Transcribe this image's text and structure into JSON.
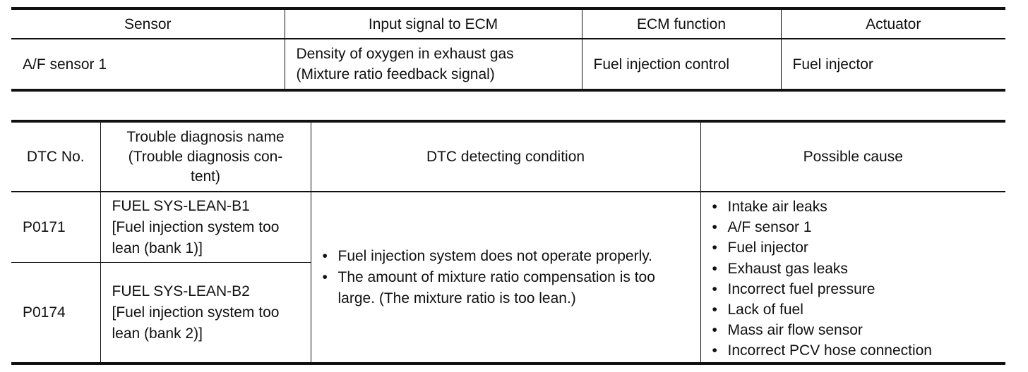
{
  "table1": {
    "headers": [
      "Sensor",
      "Input signal to ECM",
      "ECM function",
      "Actuator"
    ],
    "row": {
      "sensor": "A/F sensor 1",
      "input_line1": "Density of oxygen in exhaust gas",
      "input_line2": "(Mixture ratio feedback signal)",
      "ecm_function": "Fuel injection control",
      "actuator": "Fuel injector"
    }
  },
  "table2": {
    "headers": {
      "dtc_no": "DTC No.",
      "name_line1": "Trouble diagnosis name",
      "name_line2": "(Trouble diagnosis con-",
      "name_line3": "tent)",
      "condition": "DTC detecting condition",
      "cause": "Possible cause"
    },
    "rows": [
      {
        "dtc": "P0171",
        "name_line1": "FUEL SYS-LEAN-B1",
        "name_line2": "[Fuel injection system too",
        "name_line3": "lean (bank 1)]"
      },
      {
        "dtc": "P0174",
        "name_line1": "FUEL SYS-LEAN-B2",
        "name_line2": "[Fuel injection system too",
        "name_line3": "lean (bank 2)]"
      }
    ],
    "bullet": "•",
    "conditions": [
      {
        "line1": "Fuel injection system does not operate properly.",
        "line2": ""
      },
      {
        "line1": "The amount of mixture ratio compensation is too",
        "line2": "large. (The mixture ratio is too lean.)"
      }
    ],
    "causes": [
      "Intake air leaks",
      "A/F sensor 1",
      "Fuel injector",
      "Exhaust gas leaks",
      "Incorrect fuel pressure",
      "Lack of fuel",
      "Mass air flow sensor",
      "Incorrect PCV hose connection"
    ]
  }
}
